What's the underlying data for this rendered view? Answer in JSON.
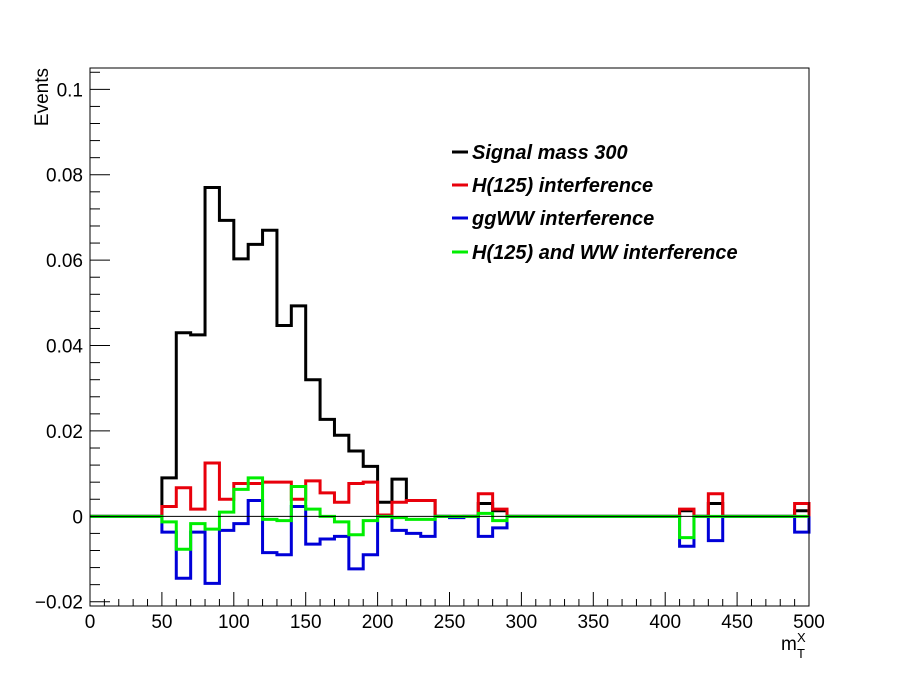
{
  "chart_data": {
    "type": "step",
    "title": "",
    "xlabel": "m",
    "xlabel_sup": "X",
    "xlabel_sub": "T",
    "ylabel": "Events",
    "xlim": [
      0,
      500
    ],
    "ylim": [
      -0.021,
      0.105
    ],
    "bin_width": 10,
    "x_ticks": [
      0,
      50,
      100,
      150,
      200,
      250,
      300,
      350,
      400,
      450,
      500
    ],
    "x_tick_labels": [
      "0",
      "50",
      "100",
      "150",
      "200",
      "250",
      "300",
      "350",
      "400",
      "450",
      "500"
    ],
    "y_ticks": [
      -0.02,
      0,
      0.02,
      0.04,
      0.06,
      0.08,
      0.1
    ],
    "y_tick_labels": [
      "−0.02",
      "0",
      "0.02",
      "0.04",
      "0.06",
      "0.08",
      "0.1"
    ],
    "legend_position": "top-right",
    "series": [
      {
        "name": "Signal mass 300",
        "color": "#000000",
        "values": [
          0,
          0,
          0,
          0,
          0,
          0.009,
          0.043,
          0.0425,
          0.077,
          0.0693,
          0.0603,
          0.0637,
          0.067,
          0.0447,
          0.0493,
          0.032,
          0.0227,
          0.019,
          0.0153,
          0.0117,
          0.0033,
          0.0087,
          0.0037,
          0.0037,
          0,
          0,
          0,
          0.003,
          0.0013,
          0,
          0,
          0,
          0,
          0,
          0,
          0,
          0,
          0,
          0,
          0,
          0,
          0.0013,
          0,
          0.003,
          0,
          0,
          0,
          0,
          0,
          0.0013
        ]
      },
      {
        "name": "H(125) interference",
        "color": "#e8000b",
        "values": [
          0,
          0,
          0,
          0,
          0,
          0.0023,
          0.0067,
          0.0017,
          0.0125,
          0.004,
          0.0077,
          0.0077,
          0.008,
          0.008,
          0.004,
          0.0083,
          0.0055,
          0.0033,
          0.0077,
          0.008,
          0.0003,
          0.0033,
          0.0037,
          0.0037,
          0,
          0,
          0,
          0.0053,
          0.0017,
          0,
          0,
          0,
          0,
          0,
          0,
          0,
          0,
          0,
          0,
          0,
          0,
          0.0017,
          0,
          0.0053,
          0,
          0,
          0,
          0,
          0,
          0.003
        ]
      },
      {
        "name": "ggWW interference",
        "color": "#0000d8",
        "values": [
          0,
          0,
          0,
          0,
          0,
          -0.0037,
          -0.0145,
          -0.0037,
          -0.0157,
          -0.0033,
          -0.0017,
          0.0037,
          -0.0085,
          -0.009,
          0.0023,
          -0.0065,
          -0.0053,
          -0.0047,
          -0.0123,
          -0.009,
          0,
          -0.0033,
          -0.004,
          -0.0047,
          0,
          -0.0003,
          0,
          -0.0047,
          -0.0027,
          0,
          0,
          0,
          0,
          0,
          0,
          0,
          0,
          0,
          0,
          0,
          0,
          -0.007,
          0,
          -0.0057,
          0,
          0,
          0,
          0,
          0,
          -0.0037
        ]
      },
      {
        "name": "H(125) and WW interference",
        "color": "#00ee00",
        "values": [
          0,
          0,
          0,
          0,
          0,
          -0.0013,
          -0.0077,
          -0.0017,
          -0.003,
          0.001,
          0.0063,
          0.009,
          -0.0007,
          -0.001,
          0.007,
          0.0017,
          0,
          -0.0013,
          -0.0043,
          -0.001,
          0,
          -0.0003,
          -0.0007,
          -0.0007,
          0,
          0,
          0,
          0.0007,
          -0.001,
          0,
          0,
          0,
          0,
          0,
          0,
          0,
          0,
          0,
          0,
          0,
          0,
          -0.005,
          0,
          0,
          0,
          0,
          0,
          0,
          0,
          0
        ]
      }
    ]
  }
}
